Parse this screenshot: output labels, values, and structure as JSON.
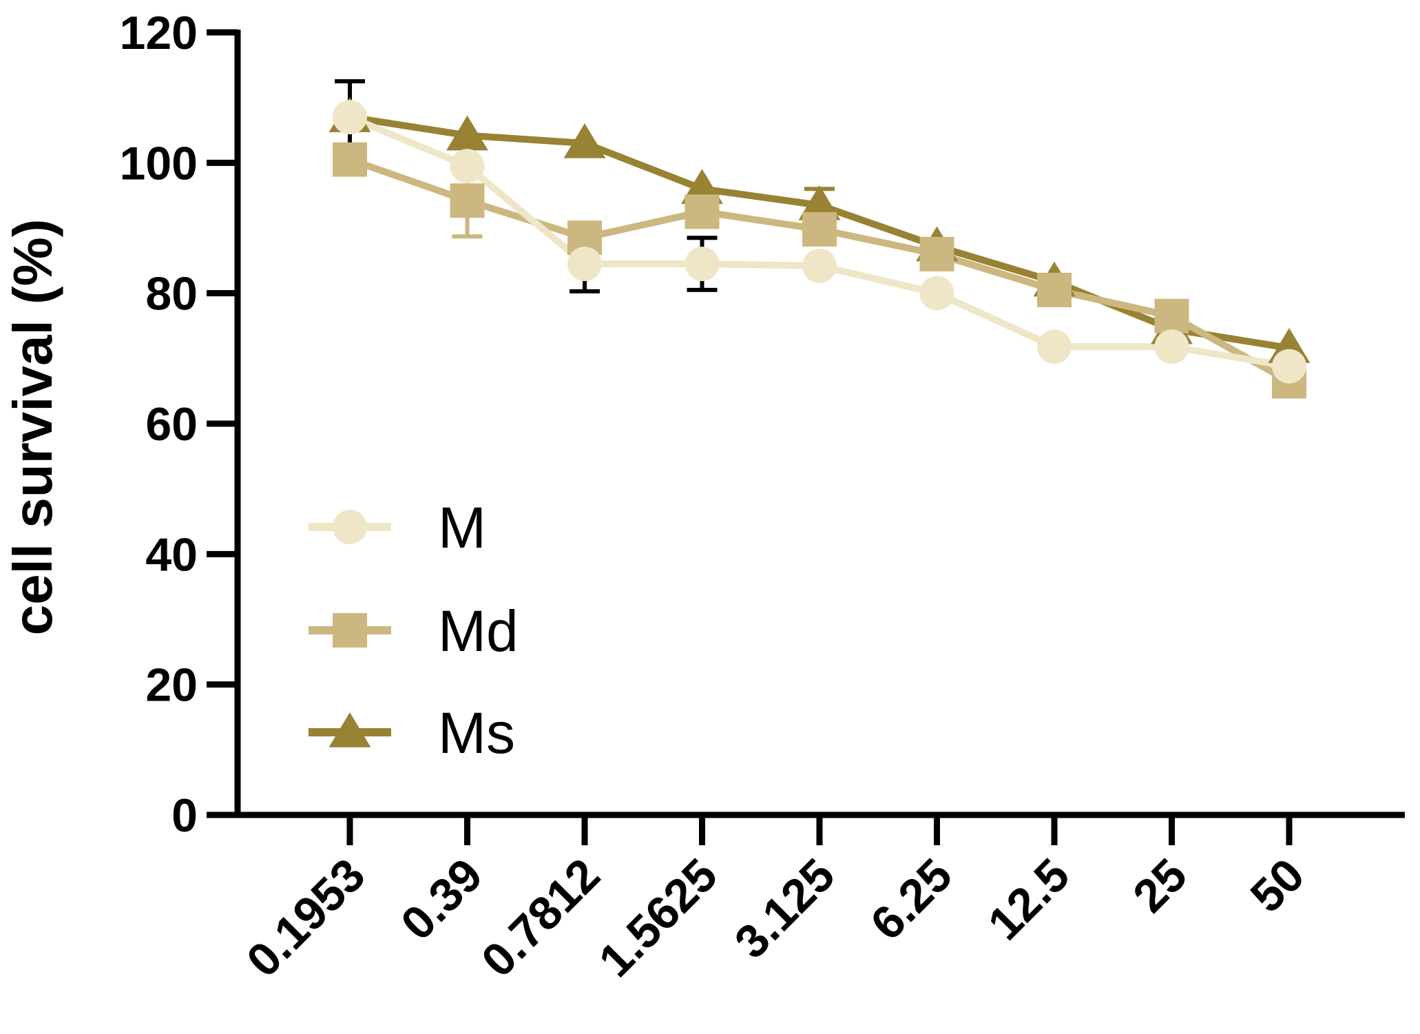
{
  "chart_data": {
    "type": "line",
    "title": "",
    "xlabel": "",
    "ylabel": "cell survival (%)",
    "ylim": [
      0,
      120
    ],
    "yticks": [
      "0",
      "20",
      "40",
      "60",
      "80",
      "100",
      "120"
    ],
    "categories": [
      "0.1953",
      "0.39",
      "0.7812",
      "1.5625",
      "3.125",
      "6.25",
      "12.5",
      "25",
      "50"
    ],
    "series": [
      {
        "name": "M",
        "marker": "circle",
        "color": "#EFE6C8",
        "values": [
          107,
          99.5,
          84.5,
          84.5,
          84.2,
          80,
          71.8,
          71.8,
          68.8
        ],
        "errors": [
          5.5,
          0,
          4.2,
          4.0,
          0,
          0,
          0,
          0,
          0
        ],
        "error_color": "#000000"
      },
      {
        "name": "Md",
        "marker": "square",
        "color": "#CBB77F",
        "values": [
          100.5,
          94.2,
          88.5,
          92.5,
          89.8,
          86,
          80.5,
          76.5,
          66.5
        ],
        "errors": [
          0,
          5.5,
          0,
          0,
          0,
          0,
          0,
          0,
          0
        ],
        "error_color": "#CBB77F"
      },
      {
        "name": "Ms",
        "marker": "triangle",
        "color": "#988233",
        "values": [
          107,
          104.2,
          103,
          96,
          93.5,
          87.2,
          81.8,
          74.5,
          71.6
        ],
        "errors": [
          0,
          0,
          0,
          0,
          2.5,
          0,
          0,
          0,
          0
        ],
        "error_color": "#988233"
      }
    ],
    "legend": {
      "position": "left-center",
      "entries": [
        "M",
        "Md",
        "Ms"
      ]
    }
  }
}
